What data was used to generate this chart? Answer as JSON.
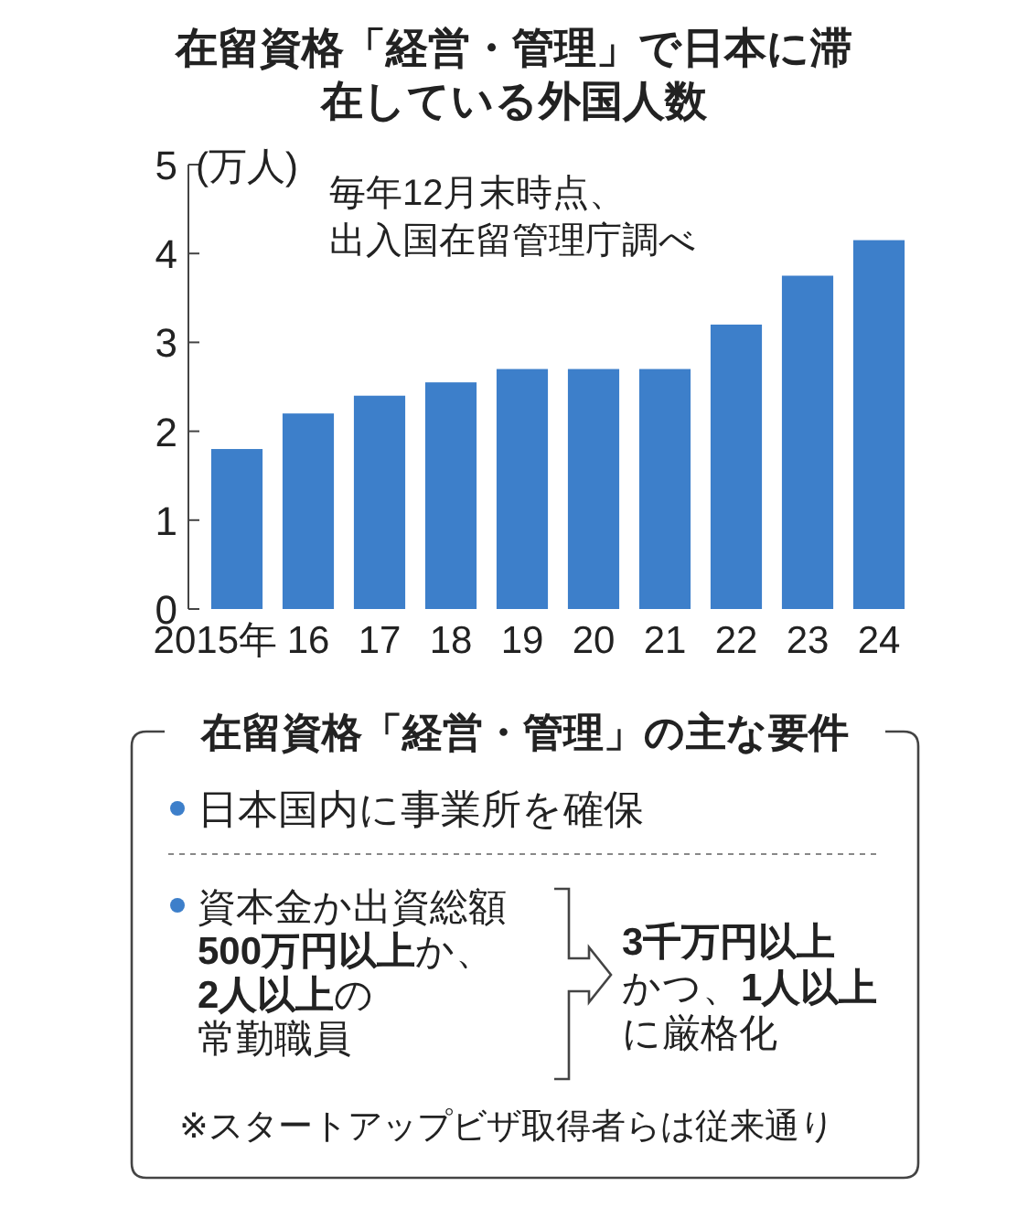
{
  "chart_data": {
    "type": "bar",
    "title": "在留資格「経営・管理」で日本に滞在している外国人数",
    "ylabel": "(万人)",
    "categories": [
      "2015年",
      "16",
      "17",
      "18",
      "19",
      "20",
      "21",
      "22",
      "23",
      "24"
    ],
    "values": [
      1.8,
      2.2,
      2.4,
      2.55,
      2.7,
      2.7,
      2.7,
      3.2,
      3.75,
      4.15
    ],
    "color": "#3d7fca",
    "ylim": [
      0,
      5
    ],
    "yticks": [
      0,
      1,
      2,
      3,
      4,
      5
    ],
    "grid": false,
    "annotations": [
      "毎年12月末時点、",
      "出入国在留管理庁調べ",
      "在留資格「経営・管理」の主な要件",
      "日本国内に事業所を確保",
      "資本金か出資総額",
      "**500万円以上**か、",
      "**2人以上**の",
      "常勤職員",
      "**3千万円以上**",
      "かつ、**1人以上**",
      "に厳格化",
      "※スタートアップビザ取得者らは従来通り"
    ]
  }
}
